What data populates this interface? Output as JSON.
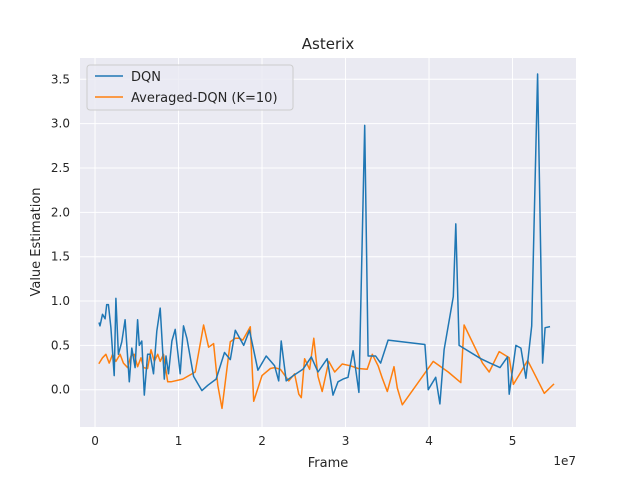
{
  "chart_data": {
    "type": "line",
    "title": "Asterix",
    "xlabel": "Frame",
    "ylabel": "Value Estimation",
    "x_offset_label": "1e7",
    "xlim": [
      -1800000,
      57600000
    ],
    "ylim": [
      -0.42,
      3.74
    ],
    "x_ticks": [
      0,
      10000000,
      20000000,
      30000000,
      40000000,
      50000000
    ],
    "x_tick_labels": [
      "0",
      "1",
      "2",
      "3",
      "4",
      "5"
    ],
    "y_ticks": [
      0.0,
      0.5,
      1.0,
      1.5,
      2.0,
      2.5,
      3.0,
      3.5
    ],
    "y_tick_labels": [
      "0.0",
      "0.5",
      "1.0",
      "1.5",
      "2.0",
      "2.5",
      "3.0",
      "3.5"
    ],
    "grid": true,
    "legend_position": "top-left",
    "series": [
      {
        "name": "DQN",
        "color": "#1f77b4",
        "x": [
          500000,
          600000,
          900000,
          1200000,
          1400000,
          1600000,
          1900000,
          2300000,
          2500000,
          2800000,
          3200000,
          3600000,
          4100000,
          4400000,
          4800000,
          5100000,
          5300000,
          5600000,
          5900000,
          6300000,
          6600000,
          7000000,
          7400000,
          7800000,
          8300000,
          8500000,
          8800000,
          9200000,
          9600000,
          10200000,
          10600000,
          11000000,
          11800000,
          12800000,
          13500000,
          14500000,
          15500000,
          16200000,
          16800000,
          17800000,
          18500000,
          19500000,
          20500000,
          21500000,
          22000000,
          22300000,
          22900000,
          23900000,
          24900000,
          25900000,
          26700000,
          27800000,
          28500000,
          29100000,
          29700000,
          30300000,
          30900000,
          31600000,
          32300000,
          32700000,
          33600000,
          34200000,
          35100000,
          39500000,
          39900000,
          40800000,
          41300000,
          41800000,
          42900000,
          43200000,
          43600000,
          46200000,
          47300000,
          48500000,
          49400000,
          49600000,
          50400000,
          51000000,
          51600000,
          52300000,
          53000000,
          53600000,
          53900000,
          54400000
        ],
        "y": [
          0.75,
          0.72,
          0.85,
          0.8,
          0.96,
          0.96,
          0.7,
          0.16,
          1.03,
          0.4,
          0.54,
          0.79,
          0.09,
          0.47,
          0.25,
          0.79,
          0.5,
          0.55,
          -0.06,
          0.4,
          0.4,
          0.18,
          0.66,
          0.92,
          0.12,
          0.38,
          0.18,
          0.55,
          0.68,
          0.18,
          0.72,
          0.58,
          0.15,
          -0.01,
          0.05,
          0.12,
          0.42,
          0.34,
          0.67,
          0.5,
          0.67,
          0.22,
          0.38,
          0.27,
          0.1,
          0.55,
          0.1,
          0.17,
          0.23,
          0.37,
          0.2,
          0.35,
          -0.06,
          0.09,
          0.12,
          0.14,
          0.44,
          -0.03,
          2.98,
          0.38,
          0.38,
          0.3,
          0.56,
          0.51,
          0.0,
          0.14,
          -0.16,
          0.45,
          1.05,
          1.87,
          0.5,
          0.35,
          0.3,
          0.25,
          0.37,
          -0.05,
          0.5,
          0.47,
          0.13,
          0.72,
          3.56,
          0.3,
          0.7,
          0.71
        ]
      },
      {
        "name": "Averaged-DQN (K=10)",
        "color": "#ff7f0e",
        "x": [
          500000,
          900000,
          1300000,
          1700000,
          2100000,
          2500000,
          3000000,
          3400000,
          3900000,
          4300000,
          4700000,
          5100000,
          5500000,
          5800000,
          6300000,
          6700000,
          7100000,
          7500000,
          7800000,
          8200000,
          8700000,
          9100000,
          10500000,
          12000000,
          13000000,
          13600000,
          14200000,
          14700000,
          15200000,
          16200000,
          16800000,
          17300000,
          17700000,
          18600000,
          19000000,
          20000000,
          21000000,
          21500000,
          22200000,
          23200000,
          23900000,
          24400000,
          24700000,
          25100000,
          25700000,
          26200000,
          26700000,
          27200000,
          28000000,
          28700000,
          29600000,
          30600000,
          31500000,
          32600000,
          33200000,
          33900000,
          34400000,
          35000000,
          35800000,
          36200000,
          36800000,
          40500000,
          42300000,
          43800000,
          44200000,
          46400000,
          47200000,
          48400000,
          49600000,
          50100000,
          51000000,
          51800000,
          52400000,
          53800000,
          54900000
        ],
        "y": [
          0.3,
          0.36,
          0.4,
          0.3,
          0.4,
          0.32,
          0.4,
          0.3,
          0.25,
          0.38,
          0.4,
          0.26,
          0.36,
          0.25,
          0.24,
          0.45,
          0.32,
          0.4,
          0.32,
          0.4,
          0.09,
          0.09,
          0.12,
          0.2,
          0.73,
          0.48,
          0.52,
          0.05,
          -0.21,
          0.54,
          0.58,
          0.58,
          0.56,
          0.71,
          -0.13,
          0.16,
          0.24,
          0.25,
          0.23,
          0.1,
          0.18,
          -0.05,
          -0.09,
          0.35,
          0.23,
          0.58,
          0.15,
          -0.02,
          0.32,
          0.2,
          0.29,
          0.27,
          0.24,
          0.23,
          0.4,
          0.27,
          0.13,
          -0.02,
          0.26,
          0.02,
          -0.17,
          0.32,
          0.2,
          0.08,
          0.73,
          0.3,
          0.2,
          0.43,
          0.36,
          0.06,
          0.2,
          0.33,
          0.22,
          -0.04,
          0.06
        ]
      }
    ]
  }
}
